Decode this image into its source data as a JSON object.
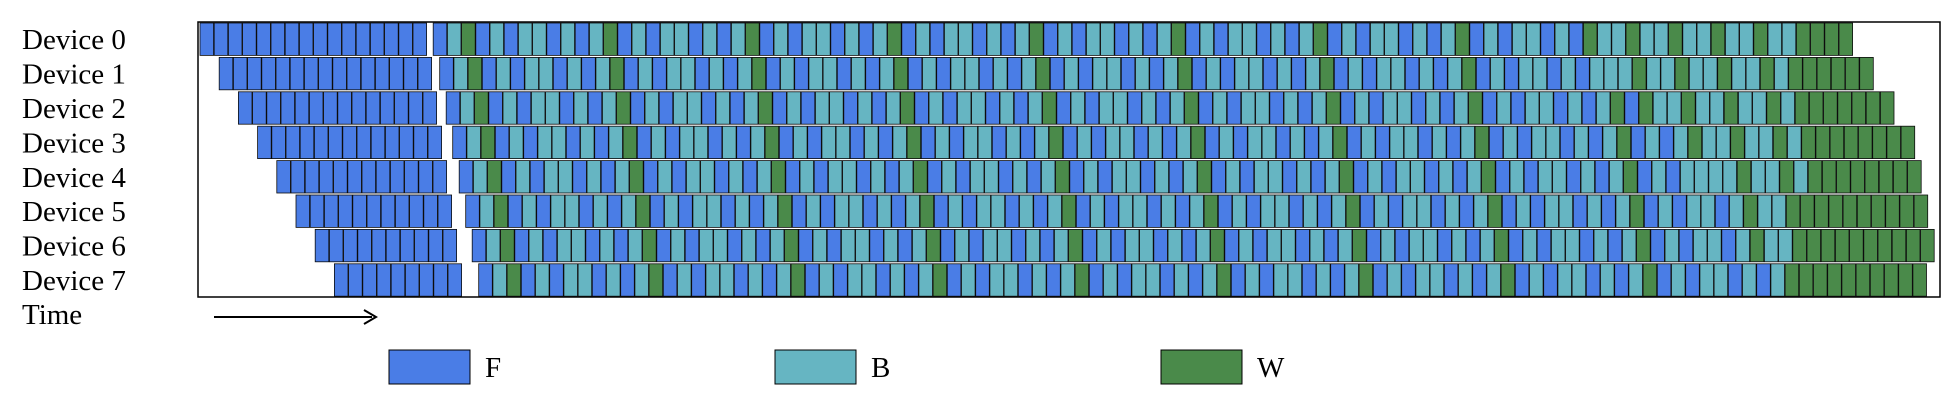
{
  "devices": [
    "Device 0",
    "Device 1",
    "Device 2",
    "Device 3",
    "Device 4",
    "Device 5",
    "Device 6",
    "Device 7"
  ],
  "time_label": "Time",
  "legend": [
    {
      "key": "F",
      "label": "F",
      "color": "#4a7de6"
    },
    {
      "key": "B",
      "label": "B",
      "color": "#66b5c2"
    },
    {
      "key": "W",
      "label": "W",
      "color": "#4a8a4a"
    }
  ],
  "colors": {
    "F": "#4a7de6",
    "B": "#66b5c2",
    "W": "#4a8a4a"
  }
}
